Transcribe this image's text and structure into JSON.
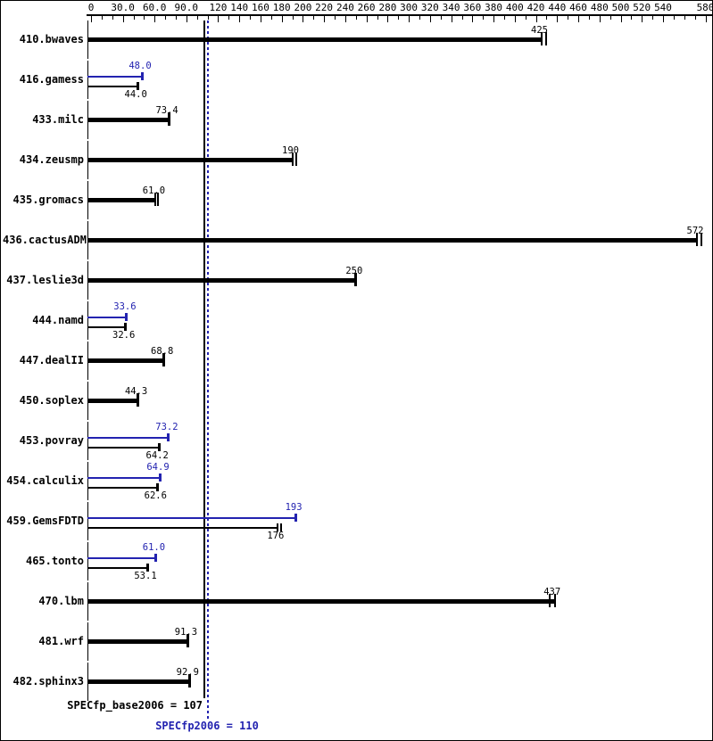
{
  "chart_data": {
    "type": "bar",
    "orientation": "horizontal",
    "title": "",
    "xlabel": "",
    "ylabel": "",
    "xlim": [
      0,
      580
    ],
    "axis_tick_step": 10,
    "grid": false,
    "axis_labels": [
      {
        "value": 0,
        "text": "0"
      },
      {
        "value": 30,
        "text": "30.0"
      },
      {
        "value": 60,
        "text": "60.0"
      },
      {
        "value": 90,
        "text": "90.0"
      },
      {
        "value": 120,
        "text": "120"
      },
      {
        "value": 140,
        "text": "140"
      },
      {
        "value": 160,
        "text": "160"
      },
      {
        "value": 180,
        "text": "180"
      },
      {
        "value": 200,
        "text": "200"
      },
      {
        "value": 220,
        "text": "220"
      },
      {
        "value": 240,
        "text": "240"
      },
      {
        "value": 260,
        "text": "260"
      },
      {
        "value": 280,
        "text": "280"
      },
      {
        "value": 300,
        "text": "300"
      },
      {
        "value": 320,
        "text": "320"
      },
      {
        "value": 340,
        "text": "340"
      },
      {
        "value": 360,
        "text": "360"
      },
      {
        "value": 380,
        "text": "380"
      },
      {
        "value": 400,
        "text": "400"
      },
      {
        "value": 420,
        "text": "420"
      },
      {
        "value": 440,
        "text": "440"
      },
      {
        "value": 460,
        "text": "460"
      },
      {
        "value": 480,
        "text": "480"
      },
      {
        "value": 500,
        "text": "500"
      },
      {
        "value": 520,
        "text": "520"
      },
      {
        "value": 540,
        "text": "540"
      },
      {
        "value": 580,
        "text": "580"
      }
    ],
    "colors": {
      "base": "#000000",
      "peak": "#2323B0"
    },
    "series_names": [
      "base",
      "peak"
    ],
    "rows": [
      {
        "name": "410.bwaves",
        "base": {
          "value": 425,
          "label": "425",
          "marks": [
            425,
            430
          ]
        },
        "peak": null
      },
      {
        "name": "416.gamess",
        "base": {
          "value": 44.0,
          "label": "44.0",
          "marks": [
            44.0
          ]
        },
        "peak": {
          "value": 48.0,
          "label": "48.0",
          "marks": [
            48.0
          ]
        }
      },
      {
        "name": "433.milc",
        "base": {
          "value": 73.4,
          "label": "73.4",
          "marks": [
            73.4
          ]
        },
        "peak": null
      },
      {
        "name": "434.zeusmp",
        "base": {
          "value": 190,
          "label": "190",
          "marks": [
            190,
            194
          ]
        },
        "peak": null
      },
      {
        "name": "435.gromacs",
        "base": {
          "value": 61.0,
          "label": "61.0",
          "marks": [
            61.0,
            63.0
          ]
        },
        "peak": null
      },
      {
        "name": "436.cactusADM",
        "base": {
          "value": 572,
          "label": "572",
          "marks": [
            572,
            576
          ]
        },
        "peak": null
      },
      {
        "name": "437.leslie3d",
        "base": {
          "value": 250,
          "label": "250",
          "marks": [
            250
          ]
        },
        "peak": null
      },
      {
        "name": "444.namd",
        "base": {
          "value": 32.6,
          "label": "32.6",
          "marks": [
            32.6
          ]
        },
        "peak": {
          "value": 33.6,
          "label": "33.6",
          "marks": [
            33.6
          ]
        }
      },
      {
        "name": "447.dealII",
        "base": {
          "value": 68.8,
          "label": "68.8",
          "marks": [
            68.8
          ]
        },
        "peak": null
      },
      {
        "name": "450.soplex",
        "base": {
          "value": 44.3,
          "label": "44.3",
          "marks": [
            44.3
          ]
        },
        "peak": null
      },
      {
        "name": "453.povray",
        "base": {
          "value": 64.2,
          "label": "64.2",
          "marks": [
            64.2
          ]
        },
        "peak": {
          "value": 73.2,
          "label": "73.2",
          "marks": [
            73.2
          ]
        }
      },
      {
        "name": "454.calculix",
        "base": {
          "value": 62.6,
          "label": "62.6",
          "marks": [
            62.6
          ]
        },
        "peak": {
          "value": 64.9,
          "label": "64.9",
          "marks": [
            64.9
          ]
        }
      },
      {
        "name": "459.GemsFDTD",
        "base": {
          "value": 176,
          "label": "176",
          "marks": [
            176,
            179
          ]
        },
        "peak": {
          "value": 193,
          "label": "193",
          "marks": [
            193
          ]
        }
      },
      {
        "name": "465.tonto",
        "base": {
          "value": 53.1,
          "label": "53.1",
          "marks": [
            53.1
          ]
        },
        "peak": {
          "value": 61.0,
          "label": "61.0",
          "marks": [
            61.0
          ]
        }
      },
      {
        "name": "470.lbm",
        "base": {
          "value": 437,
          "label": "437",
          "marks": [
            433,
            438
          ]
        },
        "peak": null
      },
      {
        "name": "481.wrf",
        "base": {
          "value": 91.3,
          "label": "91.3",
          "marks": [
            91.3
          ]
        },
        "peak": null
      },
      {
        "name": "482.sphinx3",
        "base": {
          "value": 92.9,
          "label": "92.9",
          "marks": [
            92.9
          ]
        },
        "peak": null
      }
    ],
    "summary": {
      "base_text": "SPECfp_base2006 = 107",
      "base_value": 107,
      "peak_text": "SPECfp2006 = 110",
      "peak_value": 110
    }
  }
}
